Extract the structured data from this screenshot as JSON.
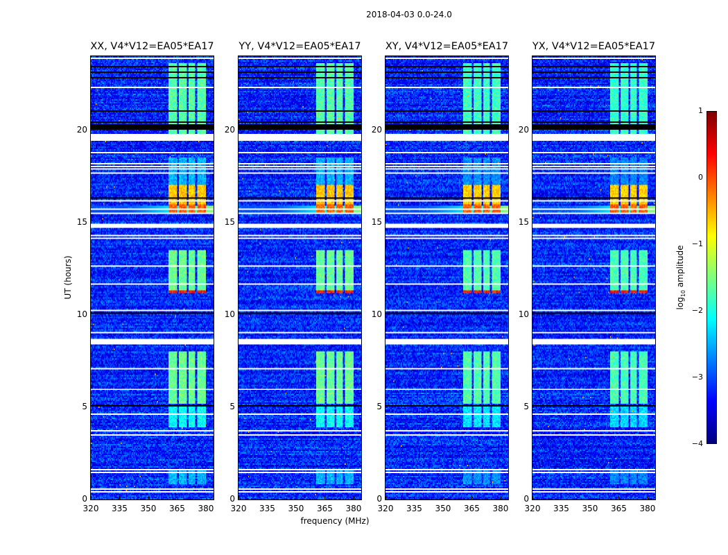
{
  "chart_data": {
    "type": "heatmap",
    "title": "2018-04-03 0.0-24.0",
    "xlabel": "frequency (MHz)",
    "ylabel": "UT (hours)",
    "xlim": [
      320,
      384
    ],
    "ylim": [
      0,
      24
    ],
    "xticks": [
      "320",
      "335",
      "350",
      "365",
      "380"
    ],
    "yticks": [
      "0",
      "5",
      "10",
      "15",
      "20"
    ],
    "panels": [
      {
        "title": "XX, V4*V12=EA05*EA17",
        "level_scale": 1.0
      },
      {
        "title": "YY, V4*V12=EA05*EA17",
        "level_scale": 1.0
      },
      {
        "title": "XY, V4*V12=EA05*EA17",
        "level_scale": 0.93
      },
      {
        "title": "YX, V4*V12=EA05*EA17",
        "level_scale": 0.9
      }
    ],
    "colorbar": {
      "label_prefix": "log",
      "label_sub": "10",
      "label_suffix": " amplitude",
      "range": [
        -4,
        1
      ],
      "ticks": [
        "1",
        "0",
        "−1",
        "−2",
        "−3",
        "−4"
      ],
      "colormap": "jet"
    },
    "background_log_amplitude": -3.2,
    "rfi_channels_mhz": [
      [
        360.5,
        365
      ],
      [
        366,
        370
      ],
      [
        371,
        374.5
      ],
      [
        375.5,
        380
      ]
    ],
    "rfi_time_segments": [
      {
        "start": 0.8,
        "end": 1.6,
        "log_amplitude": -2.5
      },
      {
        "start": 3.9,
        "end": 5.0,
        "log_amplitude": -2.1
      },
      {
        "start": 5.2,
        "end": 8.0,
        "log_amplitude": -1.6
      },
      {
        "start": 11.15,
        "end": 11.3,
        "log_amplitude": 0.2
      },
      {
        "start": 11.3,
        "end": 13.5,
        "log_amplitude": -1.6
      },
      {
        "start": 15.5,
        "end": 16.0,
        "log_amplitude": -0.1
      },
      {
        "start": 16.0,
        "end": 17.0,
        "log_amplitude": -0.6
      },
      {
        "start": 17.0,
        "end": 18.5,
        "log_amplitude": -2.5
      },
      {
        "start": 19.8,
        "end": 23.6,
        "log_amplitude": -1.7
      }
    ],
    "broadband_events": [
      {
        "start": 15.55,
        "end": 15.9,
        "log_amplitude": -2.2
      }
    ],
    "flagged_intervals_hours": [
      [
        0.38,
        0.45
      ],
      [
        0.56,
        0.62
      ],
      [
        1.43,
        1.5
      ],
      [
        1.58,
        1.64
      ],
      [
        3.46,
        3.52
      ],
      [
        3.68,
        3.74
      ],
      [
        4.32,
        4.38
      ],
      [
        4.58,
        4.64
      ],
      [
        5.93,
        5.99
      ],
      [
        6.57,
        6.63
      ],
      [
        7.06,
        7.12
      ],
      [
        7.4,
        7.46
      ],
      [
        7.62,
        7.68
      ],
      [
        8.38,
        8.71
      ],
      [
        9.01,
        9.07
      ],
      [
        10.22,
        10.28
      ],
      [
        11.64,
        11.7
      ],
      [
        12.58,
        12.64
      ],
      [
        14.08,
        14.14
      ],
      [
        14.27,
        14.33
      ],
      [
        14.72,
        14.91
      ],
      [
        15.47,
        15.53
      ],
      [
        15.66,
        15.72
      ],
      [
        16.15,
        16.21
      ],
      [
        17.65,
        17.7
      ],
      [
        17.84,
        17.89
      ],
      [
        17.99,
        18.04
      ],
      [
        18.14,
        18.19
      ],
      [
        18.78,
        18.84
      ],
      [
        19.42,
        19.79
      ],
      [
        22.31,
        22.37
      ],
      [
        22.54,
        22.6
      ],
      [
        23.85,
        23.95
      ]
    ],
    "zero_amplitude_intervals_hours": [
      [
        5.05,
        5.1
      ],
      [
        10.08,
        10.12
      ],
      [
        16.3,
        16.35
      ],
      [
        16.7,
        16.75
      ],
      [
        20.0,
        20.3
      ],
      [
        20.4,
        20.45
      ],
      [
        21.0,
        21.05
      ],
      [
        22.8,
        22.84
      ],
      [
        23.1,
        23.14
      ],
      [
        23.4,
        23.44
      ],
      [
        23.59,
        23.63
      ]
    ]
  }
}
